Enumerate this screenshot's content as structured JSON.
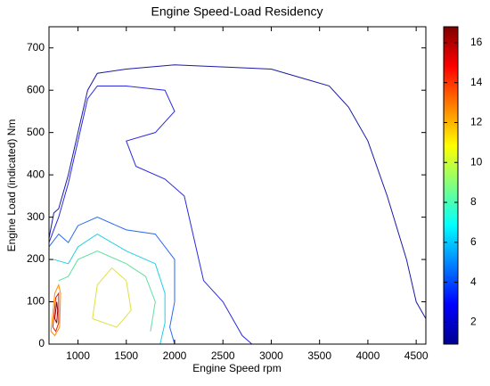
{
  "chart_data": {
    "type": "contour",
    "title": "Engine Speed-Load Residency",
    "x_label": "Engine Speed rpm",
    "y_label": "Engine Load (indicated) Nm",
    "xlim": [
      700,
      4600
    ],
    "ylim": [
      0,
      750
    ],
    "xticks": [
      1000,
      1500,
      2000,
      2500,
      3000,
      3500,
      4000,
      4500
    ],
    "yticks": [
      0,
      100,
      200,
      300,
      400,
      500,
      600,
      700
    ],
    "colorbar": {
      "clim": [
        0.9,
        16.8
      ],
      "ticks": [
        2,
        4,
        6,
        8,
        10,
        12,
        14,
        16
      ],
      "colormap": [
        "#00008f",
        "#0000ff",
        "#0080ff",
        "#00ffff",
        "#80ff80",
        "#ffff00",
        "#ff8000",
        "#ff0000",
        "#800000"
      ]
    },
    "contours": [
      {
        "color": "#1a1aa6",
        "x": [
          700,
          750,
          800,
          900,
          1000,
          1100,
          1200,
          1500,
          2000,
          2500,
          3000,
          3300,
          3600,
          3800,
          4000,
          4200,
          4400,
          4500,
          4600
        ],
        "y": [
          250,
          310,
          320,
          400,
          500,
          600,
          640,
          650,
          660,
          655,
          650,
          630,
          610,
          560,
          480,
          350,
          200,
          100,
          60
        ]
      },
      {
        "color": "#2a2ae0",
        "x": [
          700,
          800,
          900,
          1000,
          1100,
          1200,
          1500,
          1900,
          2000,
          1800,
          1500,
          1600,
          1900,
          2100,
          2200,
          2300,
          2500,
          2600,
          2700,
          2800
        ],
        "y": [
          240,
          300,
          380,
          480,
          580,
          610,
          610,
          600,
          550,
          500,
          480,
          420,
          390,
          350,
          250,
          150,
          100,
          60,
          20,
          0
        ]
      },
      {
        "color": "#2a6af0",
        "x": [
          700,
          800,
          900,
          1000,
          1200,
          1500,
          1800,
          2000,
          2000,
          1950,
          2000
        ],
        "y": [
          230,
          260,
          240,
          280,
          300,
          270,
          260,
          200,
          100,
          40,
          0
        ]
      },
      {
        "color": "#20d0e0",
        "x": [
          750,
          900,
          1000,
          1200,
          1500,
          1800,
          1900,
          1900,
          1850
        ],
        "y": [
          200,
          190,
          230,
          260,
          220,
          190,
          120,
          50,
          0
        ]
      },
      {
        "color": "#60e0a0",
        "x": [
          800,
          900,
          1000,
          1200,
          1500,
          1700,
          1800,
          1750
        ],
        "y": [
          150,
          160,
          200,
          220,
          190,
          160,
          100,
          30
        ]
      },
      {
        "color": "#e0e040",
        "x": [
          1150,
          1200,
          1350,
          1500,
          1550,
          1400,
          1150
        ],
        "y": [
          60,
          140,
          180,
          150,
          80,
          40,
          60
        ]
      },
      {
        "color": "#ff9000",
        "x": [
          720,
          760,
          800,
          820,
          810,
          760,
          720
        ],
        "y": [
          30,
          120,
          140,
          120,
          40,
          20,
          30
        ]
      },
      {
        "color": "#e02000",
        "x": [
          740,
          770,
          800,
          800,
          770,
          740
        ],
        "y": [
          40,
          110,
          120,
          50,
          30,
          40
        ]
      },
      {
        "color": "#900000",
        "x": [
          760,
          780,
          790,
          780,
          760
        ],
        "y": [
          60,
          100,
          80,
          50,
          60
        ]
      }
    ]
  }
}
